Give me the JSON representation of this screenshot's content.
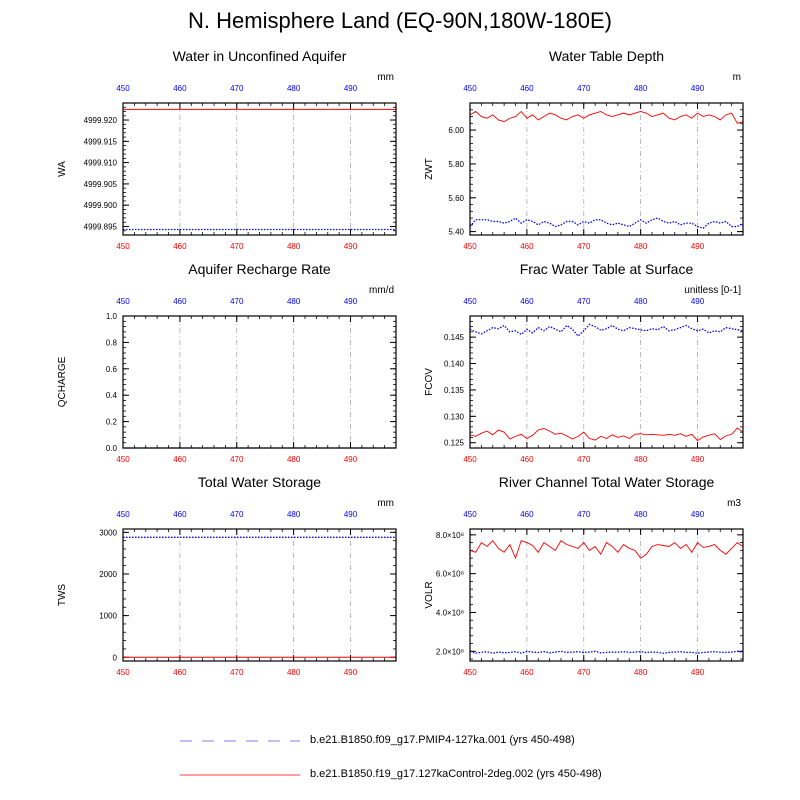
{
  "title": "N. Hemisphere Land (EQ-90N,180W-180E)",
  "colors": {
    "ctrl": "#ff0000",
    "pmip": "#0000ff",
    "grid": "#aaaaaa"
  },
  "legend": [
    {
      "label": "b.e21.B1850.f09_g17.PMIP4-127ka.001 (yrs 450-498)",
      "style": "dashed",
      "color": "#9999ee"
    },
    {
      "label": "b.e21.B1850.f19_g17.127kaControl-2deg.002 (yrs 450-498)",
      "style": "solid",
      "color": "#ff6666"
    }
  ],
  "chart_data": [
    {
      "type": "line",
      "title": "Water in Unconfined Aquifer",
      "ylabel": "WA",
      "units": "mm",
      "xlim": [
        450,
        498
      ],
      "ylim": [
        4999.893,
        4999.924
      ],
      "yticks": [
        4999.895,
        4999.9,
        4999.905,
        4999.91,
        4999.915,
        4999.92
      ],
      "ytick_labels": [
        "4999.895",
        "4999.900",
        "4999.905",
        "4999.910",
        "4999.915",
        "4999.920"
      ],
      "xticks": [
        450,
        460,
        470,
        480,
        490
      ],
      "xtick_labels": [
        "450",
        "460",
        "470",
        "480",
        "490"
      ],
      "series": [
        {
          "name": "127kaControl",
          "color": "#ff0000",
          "dash": "solid",
          "values": [
            4999.9225
          ]
        },
        {
          "name": "PMIP4-127ka",
          "color": "#0000ff",
          "dash": "dotted",
          "values": [
            4999.8943
          ]
        }
      ]
    },
    {
      "type": "line",
      "title": "Water Table Depth",
      "ylabel": "ZWT",
      "units": "m",
      "xlim": [
        450,
        498
      ],
      "ylim": [
        5.38,
        6.16
      ],
      "yticks": [
        5.4,
        5.6,
        5.8,
        6.0
      ],
      "ytick_labels": [
        "5.40",
        "5.60",
        "5.80",
        "6.00"
      ],
      "xticks": [
        450,
        460,
        470,
        480,
        490
      ],
      "xtick_labels": [
        "450",
        "460",
        "470",
        "480",
        "490"
      ],
      "series": [
        {
          "name": "127kaControl",
          "color": "#ff0000",
          "dash": "solid",
          "values": [
            6.09,
            6.11,
            6.08,
            6.07,
            6.09,
            6.06,
            6.05,
            6.07,
            6.08,
            6.11,
            6.07,
            6.09,
            6.06,
            6.08,
            6.1,
            6.09,
            6.07,
            6.06,
            6.08,
            6.09,
            6.07,
            6.09,
            6.1,
            6.11,
            6.09,
            6.08,
            6.09,
            6.1,
            6.09,
            6.1,
            6.11,
            6.1,
            6.08,
            6.09,
            6.1,
            6.07,
            6.06,
            6.08,
            6.09,
            6.07,
            6.1,
            6.08,
            6.09,
            6.08,
            6.06,
            6.09,
            6.1,
            6.04,
            6.05
          ]
        },
        {
          "name": "PMIP4-127ka",
          "color": "#0000ff",
          "dash": "dotted",
          "values": [
            5.43,
            5.47,
            5.47,
            5.47,
            5.46,
            5.46,
            5.45,
            5.46,
            5.48,
            5.45,
            5.47,
            5.46,
            5.44,
            5.46,
            5.45,
            5.43,
            5.44,
            5.46,
            5.46,
            5.44,
            5.46,
            5.45,
            5.47,
            5.47,
            5.45,
            5.44,
            5.45,
            5.44,
            5.43,
            5.45,
            5.47,
            5.45,
            5.47,
            5.48,
            5.46,
            5.45,
            5.46,
            5.44,
            5.45,
            5.45,
            5.43,
            5.42,
            5.45,
            5.46,
            5.45,
            5.46,
            5.43,
            5.43,
            5.45
          ]
        }
      ]
    },
    {
      "type": "line",
      "title": "Aquifer Recharge Rate",
      "ylabel": "QCHARGE",
      "units": "mm/d",
      "xlim": [
        450,
        498
      ],
      "ylim": [
        0,
        1
      ],
      "yticks": [
        0,
        0.2,
        0.4,
        0.6,
        0.8,
        1.0
      ],
      "ytick_labels": [
        "0.0",
        "0.2",
        "0.4",
        "0.6",
        "0.8",
        "1.0"
      ],
      "xticks": [
        450,
        460,
        470,
        480,
        490
      ],
      "xtick_labels": [
        "450",
        "460",
        "470",
        "480",
        "490"
      ],
      "series": [
        {
          "name": "127kaControl",
          "color": "#ff0000",
          "dash": "solid",
          "values": [
            0.0
          ]
        },
        {
          "name": "PMIP4-127ka",
          "color": "#0000ff",
          "dash": "dotted",
          "values": [
            0.0
          ]
        }
      ]
    },
    {
      "type": "line",
      "title": "Frac Water Table at Surface",
      "ylabel": "FCOV",
      "units": "unitless [0-1]",
      "xlim": [
        450,
        498
      ],
      "ylim": [
        0.124,
        0.149
      ],
      "yticks": [
        0.125,
        0.13,
        0.135,
        0.14,
        0.145
      ],
      "ytick_labels": [
        "0.125",
        "0.130",
        "0.135",
        "0.140",
        "0.145"
      ],
      "xticks": [
        450,
        460,
        470,
        480,
        490
      ],
      "xtick_labels": [
        "450",
        "460",
        "470",
        "480",
        "490"
      ],
      "series": [
        {
          "name": "127kaControl",
          "color": "#ff0000",
          "dash": "solid",
          "values": [
            0.1265,
            0.1262,
            0.1268,
            0.1272,
            0.1265,
            0.1274,
            0.127,
            0.1257,
            0.1262,
            0.1266,
            0.1258,
            0.1264,
            0.1274,
            0.1277,
            0.1272,
            0.1266,
            0.1268,
            0.1263,
            0.1257,
            0.1262,
            0.127,
            0.1258,
            0.1255,
            0.1262,
            0.1258,
            0.1265,
            0.126,
            0.1263,
            0.1258,
            0.1266,
            0.1267,
            0.1265,
            0.1266,
            0.1265,
            0.1264,
            0.1266,
            0.1264,
            0.1267,
            0.1262,
            0.1266,
            0.1254,
            0.1261,
            0.1264,
            0.1267,
            0.1256,
            0.1263,
            0.1266,
            0.1278,
            0.127
          ]
        },
        {
          "name": "PMIP4-127ka",
          "color": "#0000ff",
          "dash": "dotted",
          "values": [
            0.1465,
            0.146,
            0.1456,
            0.1462,
            0.1468,
            0.1466,
            0.1472,
            0.146,
            0.1462,
            0.1455,
            0.1465,
            0.1458,
            0.1468,
            0.1462,
            0.147,
            0.1465,
            0.146,
            0.1472,
            0.1465,
            0.1452,
            0.1462,
            0.1474,
            0.147,
            0.1463,
            0.1466,
            0.1472,
            0.1465,
            0.1462,
            0.1468,
            0.1466,
            0.1464,
            0.1462,
            0.1466,
            0.1464,
            0.147,
            0.1462,
            0.1464,
            0.1468,
            0.1472,
            0.1466,
            0.1462,
            0.1465,
            0.1458,
            0.1462,
            0.146,
            0.1468,
            0.1466,
            0.1464,
            0.1462
          ]
        }
      ]
    },
    {
      "type": "line",
      "title": "Total Water Storage",
      "ylabel": "TWS",
      "units": "mm",
      "xlim": [
        450,
        498
      ],
      "ylim": [
        -90,
        3080
      ],
      "yticks": [
        0,
        1000,
        2000,
        3000
      ],
      "ytick_labels": [
        "0",
        "1000",
        "2000",
        "3000"
      ],
      "xticks": [
        450,
        460,
        470,
        480,
        490
      ],
      "xtick_labels": [
        "450",
        "460",
        "470",
        "480",
        "490"
      ],
      "series": [
        {
          "name": "127kaControl",
          "color": "#ff0000",
          "dash": "solid",
          "values": [
            0
          ]
        },
        {
          "name": "PMIP4-127ka",
          "color": "#0000ff",
          "dash": "dotted",
          "values": [
            2880
          ]
        }
      ]
    },
    {
      "type": "line",
      "title": "River Channel Total Water Storage",
      "ylabel": "VOLR",
      "units": "m3",
      "xlim": [
        450,
        498
      ],
      "ylim": [
        150000000,
        830000000
      ],
      "yticks": [
        200000000,
        400000000,
        600000000,
        800000000
      ],
      "ytick_labels": [
        "2.0×10⁸",
        "4.0×10⁸",
        "6.0×10⁸",
        "8.0×10⁸"
      ],
      "xticks": [
        450,
        460,
        470,
        480,
        490
      ],
      "xtick_labels": [
        "450",
        "460",
        "470",
        "480",
        "490"
      ],
      "series": [
        {
          "name": "127kaControl",
          "color": "#ff0000",
          "dash": "solid",
          "values": [
            720000000,
            710000000,
            760000000,
            740000000,
            770000000,
            730000000,
            710000000,
            750000000,
            680000000,
            770000000,
            760000000,
            745000000,
            710000000,
            760000000,
            740000000,
            720000000,
            770000000,
            750000000,
            740000000,
            730000000,
            760000000,
            720000000,
            740000000,
            700000000,
            760000000,
            740000000,
            710000000,
            750000000,
            730000000,
            720000000,
            680000000,
            700000000,
            740000000,
            750000000,
            745000000,
            740000000,
            760000000,
            730000000,
            750000000,
            710000000,
            760000000,
            735000000,
            740000000,
            750000000,
            720000000,
            700000000,
            730000000,
            760000000,
            740000000
          ]
        },
        {
          "name": "PMIP4-127ka",
          "color": "#0000ff",
          "dash": "dotted",
          "values": [
            200000000,
            190000000,
            195000000,
            198000000,
            190000000,
            196000000,
            192000000,
            194000000,
            198000000,
            190000000,
            200000000,
            196000000,
            194000000,
            198000000,
            192000000,
            196000000,
            200000000,
            194000000,
            196000000,
            198000000,
            194000000,
            196000000,
            200000000,
            192000000,
            194000000,
            196000000,
            195000000,
            198000000,
            194000000,
            196000000,
            198000000,
            194000000,
            196000000,
            195000000,
            190000000,
            194000000,
            196000000,
            198000000,
            194000000,
            195000000,
            190000000,
            194000000,
            196000000,
            198000000,
            195000000,
            194000000,
            196000000,
            200000000,
            196000000
          ]
        }
      ]
    }
  ]
}
